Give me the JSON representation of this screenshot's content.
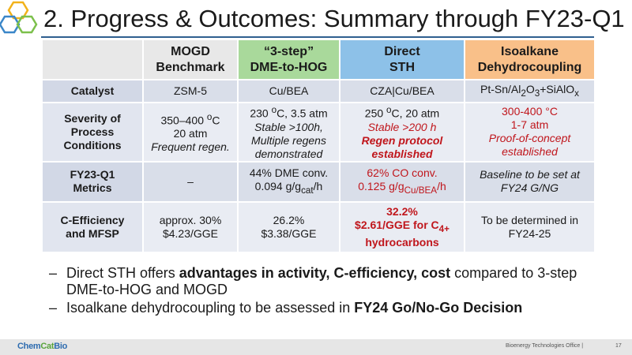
{
  "slide": {
    "title": "2. Progress & Outcomes: Summary through FY23-Q1",
    "colors": {
      "hex_yellow": "#f2b21a",
      "hex_blue": "#3a86c8",
      "hex_green": "#7cc04b",
      "title_rule": "#2f5f8f"
    }
  },
  "table": {
    "headers": {
      "mogd": [
        "MOGD",
        "Benchmark"
      ],
      "dme": [
        "“3-step”",
        "DME-to-HOG"
      ],
      "sth": [
        "Direct",
        "STH"
      ],
      "iso": [
        "Isoalkane",
        "Dehydrocoupling"
      ]
    },
    "header_colors": {
      "dme": "#a9d99b",
      "sth": "#8dc1e8",
      "iso": "#f9c089"
    },
    "rows": {
      "catalyst": {
        "label": "Catalyst",
        "mogd": "ZSM-5",
        "dme": "Cu/BEA",
        "sth": "CZA|Cu/BEA",
        "iso": {
          "a": "Pt-Sn/Al",
          "s1": "2",
          "b": "O",
          "s2": "3",
          "c": "+SiAlO",
          "s3": "x"
        }
      },
      "severity": {
        "label": [
          "Severity of",
          "Process",
          "Conditions"
        ],
        "mogd": {
          "l1a": "350–400 ",
          "l1sup": "o",
          "l1b": "C",
          "l2": "20 atm",
          "l3": "Frequent regen."
        },
        "dme": {
          "l1a": "230 ",
          "l1sup": "o",
          "l1b": "C, 3.5 atm",
          "l2": "Stable >100h,",
          "l3": "Multiple regens",
          "l4": "demonstrated"
        },
        "sth": {
          "l1a": "250 ",
          "l1sup": "o",
          "l1b": "C, 20 atm",
          "l2": "Stable >200 h",
          "l3": "Regen protocol",
          "l4": "established"
        },
        "iso": {
          "l1": "300-400 °C",
          "l2": "1-7 atm",
          "l3": "Proof-of-concept",
          "l4": "established"
        }
      },
      "metrics": {
        "label": [
          "FY23-Q1",
          "Metrics"
        ],
        "mogd": "–",
        "dme": {
          "l1": "44% DME conv.",
          "l2a": "0.094 g/g",
          "l2sub": "cat",
          "l2b": "/h"
        },
        "sth": {
          "l1": "62% CO conv.",
          "l2a": "0.125 g/g",
          "l2sub": "Cu/BEA",
          "l2b": "/h"
        },
        "iso": {
          "l1": "Baseline to be set at",
          "l2": "FY24 G/NG"
        }
      },
      "efficiency": {
        "label": [
          "C-Efficiency",
          "and MFSP"
        ],
        "mogd": {
          "l1": "approx. 30%",
          "l2": "$4.23/GGE"
        },
        "dme": {
          "l1": "26.2%",
          "l2": "$3.38/GGE"
        },
        "sth": {
          "l1": "32.2%",
          "l2a": "$2.61/GGE for C",
          "l2sub": "4+",
          "l3": "hydrocarbons"
        },
        "iso": {
          "l1": "To be determined in",
          "l2": "FY24-25"
        }
      }
    }
  },
  "bullets": {
    "dash": "–",
    "b1": {
      "t1": "Direct STH offers ",
      "t2": "advantages in activity, C-efficiency, cost",
      "t3": " compared to 3-step DME-to-HOG and MOGD"
    },
    "b2": {
      "t1": "Isoalkane dehydrocoupling to be assessed in ",
      "t2": "FY24 Go/No-Go Decision"
    }
  },
  "footer": {
    "brand": {
      "p1": "Chem",
      "p2": "Cat",
      "p3": "Bio"
    },
    "office": "Bioenergy Technologies Office  |",
    "page": "17"
  }
}
